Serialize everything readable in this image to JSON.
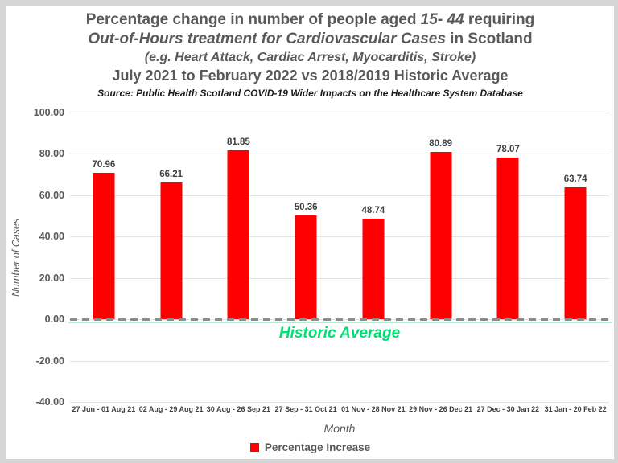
{
  "header": {
    "line1_pre": "Percentage change in number of people aged ",
    "line1_italic": "15- 44",
    "line1_post": " requiring",
    "line2_italic": "Out-of-Hours treatment for Cardiovascular Cases",
    "line2_post": " in Scotland",
    "line3": "(e.g. Heart Attack, Cardiac Arrest, Myocarditis, Stroke)",
    "line4": "July 2021 to February 2022 vs 2018/2019 Historic Average",
    "source": "Source: Public Health Scotland COVID-19 Wider Impacts on the Healthcare System Database"
  },
  "colors": {
    "frame_bg": "#d5d5d5",
    "chart_bg": "#ffffff",
    "title_text": "#595959",
    "bar": "#ff0000",
    "gridline": "#e3e3e3",
    "zero_dashed": "#8c8c8c",
    "zero_solid": "#aeeccf",
    "reference_label": "#00df74"
  },
  "chart_data": {
    "type": "bar",
    "title": "Percentage change in number of people aged 15- 44 requiring Out-of-Hours treatment for Cardiovascular Cases in Scotland (e.g. Heart Attack, Cardiac Arrest, Myocarditis, Stroke) July 2021 to February 2022 vs 2018/2019 Historic Average",
    "categories": [
      "27 Jun - 01 Aug 21",
      "02 Aug - 29 Aug 21",
      "30 Aug - 26 Sep 21",
      "27 Sep - 31 Oct 21",
      "01 Nov - 28 Nov 21",
      "29 Nov - 26 Dec 21",
      "27 Dec - 30 Jan 22",
      "31 Jan - 20 Feb 22"
    ],
    "values": [
      70.96,
      66.21,
      81.85,
      50.36,
      48.74,
      80.89,
      78.07,
      63.74
    ],
    "value_labels": [
      "70.96",
      "66.21",
      "81.85",
      "50.36",
      "48.74",
      "80.89",
      "78.07",
      "63.74"
    ],
    "xlabel": "Month",
    "ylabel": "Number of Cases",
    "ylim": [
      -40,
      100
    ],
    "yticks": [
      100,
      80,
      60,
      40,
      20,
      0,
      -20,
      -40
    ],
    "ytick_labels": [
      "100.00",
      "80.00",
      "60.00",
      "40.00",
      "20.00",
      "0.00",
      "-20.00",
      "-40.00"
    ],
    "grid": true,
    "bar_color": "#ff0000",
    "reference_line": {
      "y": 0,
      "label": "Historic Average"
    },
    "legend": {
      "position": "bottom",
      "items": [
        {
          "label": "Percentage Increase",
          "color": "#ff0000"
        }
      ]
    }
  }
}
